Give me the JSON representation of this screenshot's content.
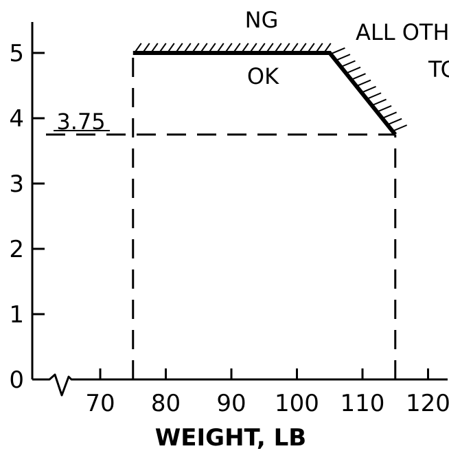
{
  "chart_data": {
    "type": "line",
    "xlabel": "WEIGHT, LB",
    "ylabel": "",
    "x_ticks": [
      70,
      80,
      90,
      100,
      110,
      120
    ],
    "y_ticks": [
      0,
      1,
      2,
      3,
      4,
      5
    ],
    "xlim": [
      60,
      122
    ],
    "ylim": [
      0,
      5.5
    ],
    "x_axis_break": true,
    "grid": false,
    "series": [
      {
        "style": "solid-thick-hatched-above",
        "points": [
          [
            75,
            5
          ],
          [
            105,
            5
          ],
          [
            115,
            3.75
          ]
        ]
      }
    ],
    "reference_lines": [
      {
        "type": "vertical",
        "x": 75,
        "from_y": 0,
        "to_y": 5,
        "style": "dashed"
      },
      {
        "type": "vertical",
        "x": 115,
        "from_y": 0,
        "to_y": 3.75,
        "style": "dashed"
      },
      {
        "type": "horizontal",
        "y": 3.75,
        "from_x": 60,
        "to_x": 115,
        "style": "dashed"
      }
    ],
    "annotations": {
      "ng": "NG",
      "ok": "OK",
      "value_label": "3.75",
      "clipped_top": "ALL OTH",
      "clipped_right": "TC"
    }
  }
}
